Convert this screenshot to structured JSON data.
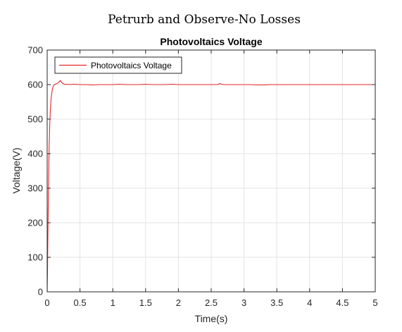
{
  "figure_title": "Petrurb and Observe-No Losses",
  "chart_data": {
    "type": "line",
    "title": "Photovoltaics Voltage",
    "xlabel": "Time(s)",
    "ylabel": "Voltage(V)",
    "xlim": [
      0,
      5
    ],
    "ylim": [
      0,
      700
    ],
    "xticks": [
      0,
      0.5,
      1,
      1.5,
      2,
      2.5,
      3,
      3.5,
      4,
      4.5,
      5
    ],
    "xtick_labels": [
      "0",
      "0.5",
      "1",
      "1.5",
      "2",
      "2.5",
      "3",
      "3.5",
      "4",
      "4.5",
      "5"
    ],
    "yticks": [
      0,
      100,
      200,
      300,
      400,
      500,
      600,
      700
    ],
    "ytick_labels": [
      "0",
      "100",
      "200",
      "300",
      "400",
      "500",
      "600",
      "700"
    ],
    "grid": true,
    "legend_position": "top-left",
    "series": [
      {
        "name": "Photovoltaics Voltage",
        "color": "#e8262b",
        "x": [
          0,
          0.005,
          0.01,
          0.02,
          0.03,
          0.04,
          0.05,
          0.06,
          0.08,
          0.1,
          0.12,
          0.15,
          0.18,
          0.2,
          0.22,
          0.25,
          0.28,
          0.3,
          0.35,
          0.4,
          0.5,
          0.6,
          0.7,
          0.8,
          0.9,
          1.0,
          1.1,
          1.2,
          1.3,
          1.4,
          1.5,
          1.6,
          1.7,
          1.8,
          1.9,
          2.0,
          2.1,
          2.2,
          2.3,
          2.4,
          2.5,
          2.6,
          2.63,
          2.66,
          2.7,
          2.8,
          2.9,
          3.0,
          3.1,
          3.2,
          3.3,
          3.4,
          3.5,
          3.6,
          3.7,
          3.8,
          3.9,
          4.0,
          4.1,
          4.2,
          4.3,
          4.4,
          4.5,
          4.6,
          4.7,
          4.8,
          4.9,
          5.0
        ],
        "values": [
          0,
          60,
          150,
          300,
          420,
          490,
          530,
          560,
          588,
          598,
          601,
          603,
          607,
          612,
          606,
          602,
          600,
          601,
          600,
          601,
          600,
          600,
          599,
          600,
          600,
          600,
          601,
          600,
          600,
          600,
          601,
          600,
          600,
          600,
          601,
          600,
          600,
          600,
          600,
          600,
          600,
          600,
          603,
          601,
          600,
          600,
          600,
          600,
          600,
          599,
          599,
          600,
          600,
          600,
          600,
          600,
          600,
          600,
          600,
          600,
          600,
          600,
          600,
          600,
          600,
          600,
          600,
          600
        ]
      }
    ]
  }
}
